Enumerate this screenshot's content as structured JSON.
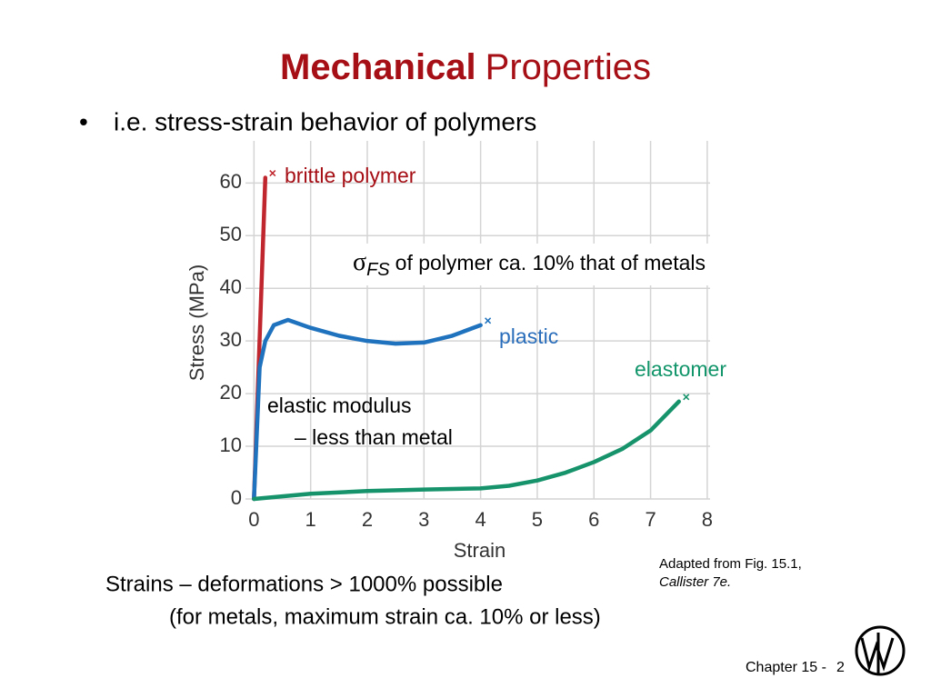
{
  "slide": {
    "title_bold": "Mechanical",
    "title_rest": "Properties",
    "bullet": "i.e. stress-strain behavior of polymers",
    "note_line1": "Strains –  deformations > 1000% possible",
    "note_line2": "(for metals, maximum strain ca. 10% or less)",
    "source_line1": "Adapted from Fig. 15.1,",
    "source_line2": "Callister 7e.",
    "footer_label": "Chapter 15 -",
    "footer_page": "2"
  },
  "chart_data": {
    "type": "line",
    "x_label": "Strain",
    "y_label": "Stress (MPa)",
    "xlim": [
      -0.15,
      8.05
    ],
    "ylim": [
      0,
      68
    ],
    "xticks": [
      0,
      1,
      2,
      3,
      4,
      5,
      6,
      7,
      8
    ],
    "yticks": [
      0,
      10,
      20,
      30,
      40,
      50,
      60
    ],
    "grid": true,
    "annotations": {
      "sigma": "σ",
      "sigma_sub": "FS",
      "sigma_text": "of polymer ca. 10% that of metals",
      "modulus_line1": "elastic modulus",
      "modulus_line2": "–  less than metal"
    },
    "series": [
      {
        "name": "brittle polymer",
        "color": "#c0262d",
        "label_color": "#a50f15",
        "x": [
          0,
          0.2
        ],
        "values": [
          0,
          61
        ]
      },
      {
        "name": "plastic",
        "color": "#1f72bd",
        "label_color": "#2a6ebb",
        "x": [
          0,
          0.1,
          0.2,
          0.35,
          0.6,
          1,
          1.5,
          2,
          2.5,
          3,
          3.5,
          4
        ],
        "values": [
          0,
          25,
          30,
          33,
          34,
          32.5,
          31,
          30,
          29.5,
          29.7,
          31,
          33
        ]
      },
      {
        "name": "elastomer",
        "color": "#17936b",
        "label_color": "#12956a",
        "x": [
          0,
          0.5,
          1,
          2,
          3,
          4,
          4.5,
          5,
          5.5,
          6,
          6.5,
          7,
          7.5
        ],
        "values": [
          0,
          0.5,
          1,
          1.5,
          1.8,
          2,
          2.5,
          3.5,
          5,
          7,
          9.5,
          13,
          18.5
        ]
      }
    ]
  }
}
